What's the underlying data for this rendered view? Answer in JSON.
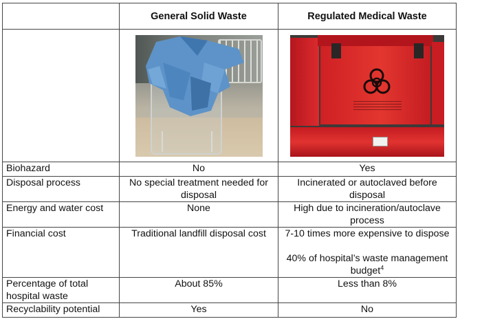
{
  "table": {
    "headers": [
      "",
      "General Solid Waste",
      "Regulated Medical Waste"
    ],
    "images": {
      "general": "photo of blue waste bag on wire cart",
      "medical": "photo of red biohazard waste containers"
    },
    "rows": {
      "biohazard": {
        "label": "Biohazard",
        "general": "No",
        "medical": "Yes"
      },
      "disposal_process": {
        "label": "Disposal process",
        "general": "No special treatment needed for disposal",
        "medical": "Incinerated or autoclaved before disposal"
      },
      "energy_water": {
        "label": "Energy and water cost",
        "general": "None",
        "medical": "High due to incineration/autoclave process"
      },
      "financial": {
        "label": "Financial cost",
        "general": "Traditional landfill disposal cost",
        "medical_line1": "7-10 times more expensive to dispose",
        "medical_line2": "40% of hospital’s waste management budget",
        "medical_footnote": "4"
      },
      "percentage": {
        "label": "Percentage of total hospital waste",
        "general": "About 85%",
        "medical": "Less than 8%"
      },
      "recyclability": {
        "label": "Recyclability potential",
        "general": "Yes",
        "medical": "No"
      }
    }
  },
  "colors": {
    "border": "#444444",
    "text": "#111111",
    "bag_blue": "#5a8fc6",
    "bin_red": "#d8262a"
  }
}
